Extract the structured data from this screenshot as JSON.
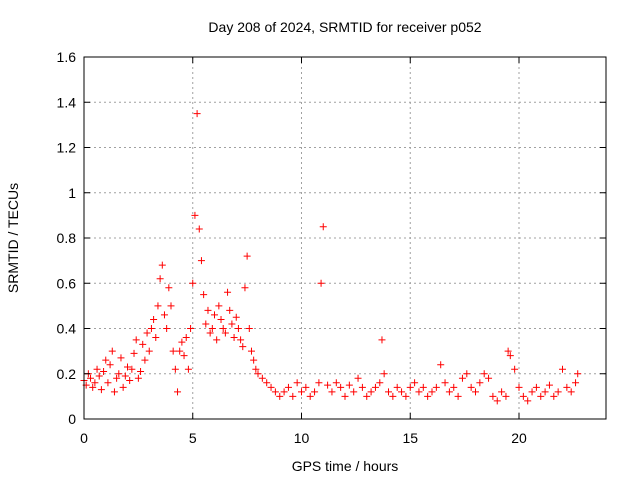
{
  "chart_data": {
    "type": "scatter",
    "title": "Day 208 of 2024, SRMTID for receiver p052",
    "xlabel": "GPS time / hours",
    "ylabel": "SRMTID / TECUs",
    "xlim": [
      0,
      24
    ],
    "ylim": [
      0,
      1.6
    ],
    "xticks": [
      0,
      5,
      10,
      15,
      20
    ],
    "xtick_labels": [
      "0",
      "5",
      "10",
      "15",
      "20"
    ],
    "yticks": [
      0,
      0.2,
      0.4,
      0.6,
      0.8,
      1.0,
      1.2,
      1.4,
      1.6
    ],
    "ytick_labels": [
      "0",
      "0.2",
      "0.4",
      "0.6",
      "0.8",
      "1",
      "1.2",
      "1.4",
      "1.6"
    ],
    "grid": true,
    "marker": "+",
    "color": "#ff0000",
    "series": [
      {
        "name": "SRMTID",
        "x": [
          0.0,
          0.1,
          0.2,
          0.3,
          0.4,
          0.5,
          0.6,
          0.7,
          0.8,
          0.9,
          1.0,
          1.1,
          1.2,
          1.3,
          1.4,
          1.5,
          1.6,
          1.7,
          1.8,
          1.9,
          2.0,
          2.1,
          2.2,
          2.3,
          2.4,
          2.5,
          2.6,
          2.7,
          2.8,
          2.9,
          3.0,
          3.1,
          3.2,
          3.3,
          3.4,
          3.5,
          3.6,
          3.7,
          3.8,
          3.9,
          4.0,
          4.1,
          4.2,
          4.3,
          4.4,
          4.5,
          4.6,
          4.7,
          4.8,
          4.9,
          5.0,
          5.1,
          5.2,
          5.3,
          5.4,
          5.5,
          5.6,
          5.7,
          5.8,
          5.9,
          6.0,
          6.1,
          6.2,
          6.3,
          6.4,
          6.5,
          6.6,
          6.7,
          6.8,
          6.9,
          7.0,
          7.1,
          7.2,
          7.3,
          7.4,
          7.5,
          7.6,
          7.7,
          7.8,
          7.9,
          8.0,
          8.2,
          8.4,
          8.6,
          8.8,
          9.0,
          9.2,
          9.4,
          9.6,
          9.8,
          10.0,
          10.2,
          10.4,
          10.6,
          10.8,
          10.9,
          11.0,
          11.2,
          11.4,
          11.6,
          11.8,
          12.0,
          12.2,
          12.4,
          12.6,
          12.8,
          13.0,
          13.2,
          13.4,
          13.6,
          13.7,
          13.8,
          14.0,
          14.2,
          14.4,
          14.6,
          14.8,
          15.0,
          15.2,
          15.4,
          15.6,
          15.8,
          16.0,
          16.2,
          16.4,
          16.6,
          16.8,
          17.0,
          17.2,
          17.4,
          17.6,
          17.8,
          18.0,
          18.2,
          18.4,
          18.6,
          18.8,
          19.0,
          19.2,
          19.4,
          19.5,
          19.6,
          19.8,
          20.0,
          20.2,
          20.4,
          20.6,
          20.8,
          21.0,
          21.2,
          21.4,
          21.6,
          21.8,
          22.0,
          22.2,
          22.4,
          22.6,
          22.7
        ],
        "y": [
          0.17,
          0.15,
          0.2,
          0.18,
          0.14,
          0.16,
          0.22,
          0.19,
          0.13,
          0.21,
          0.26,
          0.16,
          0.24,
          0.3,
          0.12,
          0.18,
          0.2,
          0.27,
          0.14,
          0.19,
          0.23,
          0.17,
          0.22,
          0.29,
          0.35,
          0.18,
          0.21,
          0.33,
          0.26,
          0.38,
          0.3,
          0.4,
          0.44,
          0.36,
          0.5,
          0.62,
          0.68,
          0.46,
          0.4,
          0.58,
          0.5,
          0.3,
          0.22,
          0.12,
          0.3,
          0.34,
          0.28,
          0.36,
          0.22,
          0.4,
          0.6,
          0.9,
          1.35,
          0.84,
          0.7,
          0.55,
          0.42,
          0.48,
          0.38,
          0.4,
          0.46,
          0.35,
          0.5,
          0.44,
          0.4,
          0.38,
          0.56,
          0.48,
          0.42,
          0.36,
          0.45,
          0.4,
          0.35,
          0.32,
          0.58,
          0.72,
          0.4,
          0.3,
          0.26,
          0.22,
          0.2,
          0.18,
          0.16,
          0.14,
          0.12,
          0.1,
          0.12,
          0.14,
          0.1,
          0.16,
          0.12,
          0.14,
          0.1,
          0.12,
          0.16,
          0.6,
          0.85,
          0.15,
          0.12,
          0.16,
          0.14,
          0.1,
          0.15,
          0.12,
          0.18,
          0.14,
          0.1,
          0.12,
          0.14,
          0.16,
          0.35,
          0.2,
          0.12,
          0.1,
          0.14,
          0.12,
          0.1,
          0.14,
          0.16,
          0.12,
          0.14,
          0.1,
          0.12,
          0.14,
          0.24,
          0.16,
          0.12,
          0.14,
          0.1,
          0.18,
          0.2,
          0.14,
          0.12,
          0.16,
          0.2,
          0.18,
          0.1,
          0.08,
          0.12,
          0.1,
          0.3,
          0.28,
          0.22,
          0.14,
          0.1,
          0.08,
          0.12,
          0.14,
          0.1,
          0.12,
          0.15,
          0.1,
          0.12,
          0.22,
          0.14,
          0.12,
          0.16,
          0.2
        ]
      }
    ]
  }
}
